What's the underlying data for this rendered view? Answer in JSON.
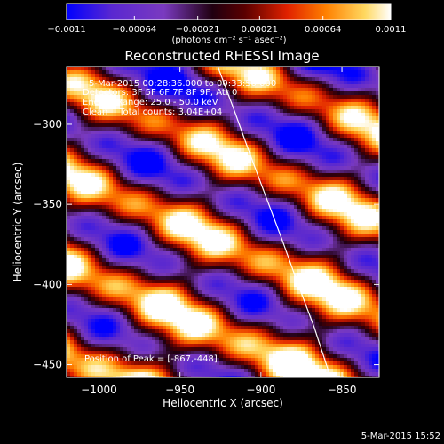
{
  "chart_data": {
    "type": "heatmap",
    "title": "Reconstructed RHESSI Image",
    "xlabel": "Heliocentric X (arcsec)",
    "ylabel": "Heliocentric Y (arcsec)",
    "xlim": [
      -1020,
      -827
    ],
    "ylim": [
      -458,
      -264
    ],
    "x_ticks": [
      -1000,
      -950,
      -900,
      -850
    ],
    "y_ticks": [
      -300,
      -350,
      -400,
      -450
    ],
    "x_tick_labels": [
      "−1000",
      "−950",
      "−900",
      "−850"
    ],
    "y_tick_labels": [
      "−300",
      "−350",
      "−400",
      "−450"
    ],
    "colorbar": {
      "min": -0.0011,
      "max": 0.0011,
      "ticks": [
        -0.0011,
        -0.00064,
        -0.00021,
        0.00021,
        0.00064,
        0.0011
      ],
      "tick_labels": [
        "−0.0011",
        "−0.00064",
        "−0.00021",
        "0.00021",
        "0.00064",
        "0.0011"
      ],
      "unit": "(photons cm⁻² s⁻¹ asec⁻²)",
      "colors": [
        "#0000ff",
        "#6a1ec8",
        "#7a3ac0",
        "#000000",
        "#b01010",
        "#ff3c00",
        "#ff9a00",
        "#ffe890",
        "#ffffff"
      ]
    },
    "annotations": {
      "time_range": "5-Mar-2015 00:28:36.000 to 00:33:50.000",
      "detectors": "Detectors: 3F 5F 6F 7F 8F 9F, Att 0",
      "energy": "Energy Range: 25.0 - 50.0 keV",
      "clean": "Clean    Total counts: 3.04E+04",
      "peak": "Position of Peak = [-867,-448]"
    },
    "peak_position": [
      -867,
      -448
    ],
    "limb_curve": {
      "x": [
        -927,
        -917,
        -907,
        -897,
        -887,
        -877,
        -867,
        -857
      ],
      "y": [
        -263,
        -290,
        -318,
        -345,
        -372,
        -400,
        -427,
        -458
      ]
    }
  },
  "footer": {
    "timestamp": "5-Mar-2015 15:52"
  }
}
